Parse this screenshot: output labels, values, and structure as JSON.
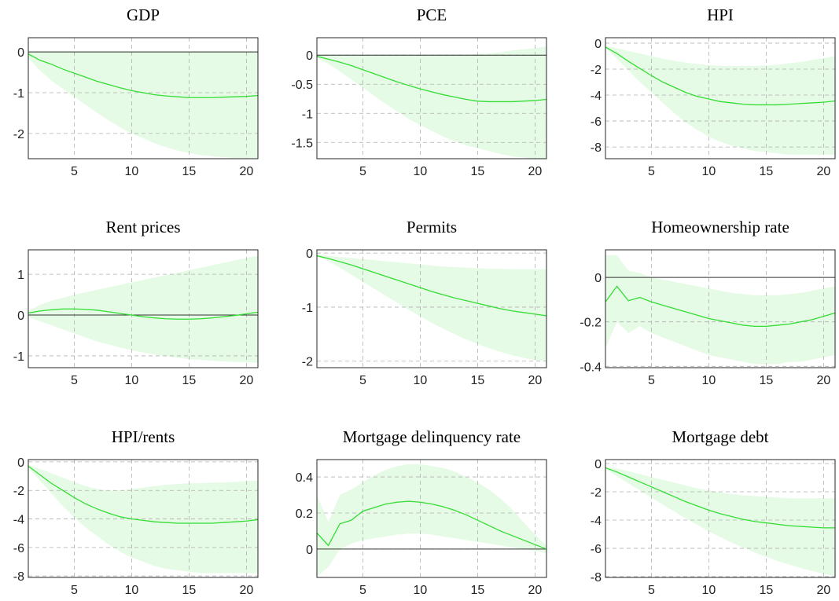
{
  "chart_data": [
    {
      "type": "line",
      "title": "GDP",
      "x": [
        1,
        2,
        3,
        4,
        5,
        6,
        7,
        8,
        9,
        10,
        11,
        12,
        13,
        14,
        15,
        16,
        17,
        18,
        19,
        20,
        21
      ],
      "xlim": [
        1,
        21
      ],
      "xticks": [
        5,
        10,
        15,
        20
      ],
      "ylim": [
        -2.62,
        0.35
      ],
      "yticks": [
        -2,
        -1,
        0
      ],
      "hline": 0,
      "grid": true,
      "color": "#33dd33",
      "band_color": "#e6fbe6",
      "values": [
        -0.05,
        -0.2,
        -0.3,
        -0.42,
        -0.52,
        -0.62,
        -0.72,
        -0.8,
        -0.88,
        -0.95,
        -1.0,
        -1.05,
        -1.08,
        -1.1,
        -1.12,
        -1.12,
        -1.12,
        -1.11,
        -1.1,
        -1.09,
        -1.07
      ],
      "lower": [
        -0.15,
        -0.45,
        -0.7,
        -0.9,
        -1.1,
        -1.3,
        -1.5,
        -1.68,
        -1.85,
        -2.0,
        -2.12,
        -2.24,
        -2.34,
        -2.42,
        -2.48,
        -2.53,
        -2.56,
        -2.58,
        -2.6,
        -2.6,
        -2.6
      ],
      "upper": [
        0.02,
        0.02,
        0.02,
        0.02,
        0.02,
        0.02,
        0.02,
        0.02,
        0.02,
        0.02,
        0.02,
        0.02,
        0.02,
        0.02,
        0.02,
        0.02,
        0.02,
        0.02,
        0.02,
        0.02,
        0.02
      ]
    },
    {
      "type": "line",
      "title": "PCE",
      "x": [
        1,
        2,
        3,
        4,
        5,
        6,
        7,
        8,
        9,
        10,
        11,
        12,
        13,
        14,
        15,
        16,
        17,
        18,
        19,
        20,
        21
      ],
      "xlim": [
        1,
        21
      ],
      "xticks": [
        5,
        10,
        15,
        20
      ],
      "ylim": [
        -1.78,
        0.3
      ],
      "yticks": [
        -1.5,
        -1,
        -0.5,
        0
      ],
      "hline": 0,
      "grid": true,
      "color": "#33dd33",
      "band_color": "#e6fbe6",
      "values": [
        -0.02,
        -0.07,
        -0.12,
        -0.18,
        -0.25,
        -0.32,
        -0.39,
        -0.46,
        -0.52,
        -0.58,
        -0.63,
        -0.68,
        -0.72,
        -0.76,
        -0.79,
        -0.8,
        -0.8,
        -0.8,
        -0.79,
        -0.78,
        -0.76
      ],
      "lower": [
        -0.05,
        -0.15,
        -0.28,
        -0.42,
        -0.56,
        -0.7,
        -0.84,
        -0.97,
        -1.1,
        -1.2,
        -1.3,
        -1.4,
        -1.48,
        -1.55,
        -1.6,
        -1.65,
        -1.7,
        -1.74,
        -1.76,
        -1.78,
        -1.78
      ],
      "upper": [
        0.01,
        0.01,
        0.01,
        0.01,
        0.01,
        0.01,
        0.01,
        0.01,
        0.01,
        0.01,
        0.01,
        0.01,
        0.01,
        0.01,
        0.02,
        0.03,
        0.05,
        0.08,
        0.1,
        0.12,
        0.15
      ]
    },
    {
      "type": "line",
      "title": "HPI",
      "x": [
        1,
        2,
        3,
        4,
        5,
        6,
        7,
        8,
        9,
        10,
        11,
        12,
        13,
        14,
        15,
        16,
        17,
        18,
        19,
        20,
        21
      ],
      "xlim": [
        1,
        21
      ],
      "xticks": [
        5,
        10,
        15,
        20
      ],
      "ylim": [
        -8.9,
        0.42
      ],
      "yticks": [
        -8,
        -6,
        -4,
        -2,
        0
      ],
      "grid": true,
      "color": "#33dd33",
      "band_color": "#e6fbe6",
      "values": [
        -0.3,
        -0.8,
        -1.4,
        -1.95,
        -2.5,
        -3.0,
        -3.4,
        -3.8,
        -4.1,
        -4.3,
        -4.5,
        -4.6,
        -4.7,
        -4.75,
        -4.75,
        -4.75,
        -4.7,
        -4.65,
        -4.6,
        -4.55,
        -4.45
      ],
      "lower": [
        -0.4,
        -1.2,
        -2.1,
        -3,
        -3.8,
        -4.6,
        -5.4,
        -6.1,
        -6.7,
        -7.2,
        -7.6,
        -7.9,
        -8.1,
        -8.3,
        -8.4,
        -8.5,
        -8.6,
        -8.6,
        -8.6,
        -8.6,
        -8.6
      ],
      "upper": [
        -0.2,
        -0.4,
        -0.6,
        -0.8,
        -1.0,
        -1.2,
        -1.35,
        -1.5,
        -1.6,
        -1.7,
        -1.75,
        -1.75,
        -1.75,
        -1.75,
        -1.72,
        -1.65,
        -1.55,
        -1.45,
        -1.3,
        -1.15,
        -1.0
      ]
    },
    {
      "type": "line",
      "title": "Rent prices",
      "x": [
        1,
        2,
        3,
        4,
        5,
        6,
        7,
        8,
        9,
        10,
        11,
        12,
        13,
        14,
        15,
        16,
        17,
        18,
        19,
        20,
        21
      ],
      "xlim": [
        1,
        21
      ],
      "xticks": [
        5,
        10,
        15,
        20
      ],
      "ylim": [
        -1.29,
        1.6
      ],
      "yticks": [
        -1,
        0,
        1
      ],
      "hline": 0,
      "grid": true,
      "color": "#33dd33",
      "band_color": "#e6fbe6",
      "values": [
        0.05,
        0.1,
        0.13,
        0.15,
        0.15,
        0.14,
        0.12,
        0.08,
        0.04,
        0,
        -0.04,
        -0.07,
        -0.09,
        -0.1,
        -0.1,
        -0.09,
        -0.07,
        -0.04,
        -0.01,
        0.03,
        0.07
      ],
      "lower": [
        -0.05,
        -0.15,
        -0.25,
        -0.35,
        -0.45,
        -0.55,
        -0.65,
        -0.72,
        -0.8,
        -0.86,
        -0.92,
        -0.97,
        -1.01,
        -1.05,
        -1.08,
        -1.1,
        -1.12,
        -1.14,
        -1.15,
        -1.16,
        -1.17
      ],
      "upper": [
        0.1,
        0.25,
        0.35,
        0.42,
        0.5,
        0.56,
        0.62,
        0.68,
        0.74,
        0.8,
        0.86,
        0.92,
        0.98,
        1.04,
        1.1,
        1.16,
        1.22,
        1.28,
        1.34,
        1.4,
        1.45
      ]
    },
    {
      "type": "line",
      "title": "Permits",
      "x": [
        1,
        2,
        3,
        4,
        5,
        6,
        7,
        8,
        9,
        10,
        11,
        12,
        13,
        14,
        15,
        16,
        17,
        18,
        19,
        20,
        21
      ],
      "xlim": [
        1,
        21
      ],
      "xticks": [
        5,
        10,
        15,
        20
      ],
      "ylim": [
        -2.12,
        0.06
      ],
      "yticks": [
        -2,
        -1,
        0
      ],
      "grid": true,
      "color": "#33dd33",
      "band_color": "#e6fbe6",
      "values": [
        -0.05,
        -0.1,
        -0.16,
        -0.22,
        -0.29,
        -0.36,
        -0.43,
        -0.5,
        -0.57,
        -0.64,
        -0.71,
        -0.77,
        -0.83,
        -0.88,
        -0.93,
        -0.98,
        -1.03,
        -1.07,
        -1.1,
        -1.13,
        -1.16
      ],
      "lower": [
        -0.05,
        -0.15,
        -0.27,
        -0.4,
        -0.53,
        -0.66,
        -0.79,
        -0.92,
        -1.05,
        -1.17,
        -1.29,
        -1.4,
        -1.5,
        -1.6,
        -1.68,
        -1.76,
        -1.83,
        -1.89,
        -1.94,
        -1.98,
        -2.0
      ],
      "upper": [
        -0.03,
        -0.05,
        -0.07,
        -0.09,
        -0.11,
        -0.13,
        -0.15,
        -0.17,
        -0.19,
        -0.21,
        -0.23,
        -0.25,
        -0.26,
        -0.27,
        -0.28,
        -0.29,
        -0.29,
        -0.3,
        -0.3,
        -0.3,
        -0.3
      ]
    },
    {
      "type": "line",
      "title": "Homeownership rate",
      "x": [
        1,
        2,
        3,
        4,
        5,
        6,
        7,
        8,
        9,
        10,
        11,
        12,
        13,
        14,
        15,
        16,
        17,
        18,
        19,
        20,
        21
      ],
      "xlim": [
        1,
        21
      ],
      "xticks": [
        5,
        10,
        15,
        20
      ],
      "ylim": [
        -0.406,
        0.124
      ],
      "yticks": [
        -0.4,
        -0.2,
        0
      ],
      "hline": 0,
      "grid": true,
      "color": "#33dd33",
      "band_color": "#e6fbe6",
      "values": [
        -0.11,
        -0.04,
        -0.105,
        -0.09,
        -0.11,
        -0.125,
        -0.14,
        -0.155,
        -0.17,
        -0.185,
        -0.195,
        -0.205,
        -0.215,
        -0.22,
        -0.22,
        -0.215,
        -0.21,
        -0.2,
        -0.19,
        -0.175,
        -0.16
      ],
      "lower": [
        -0.32,
        -0.2,
        -0.25,
        -0.22,
        -0.25,
        -0.27,
        -0.29,
        -0.31,
        -0.33,
        -0.35,
        -0.36,
        -0.37,
        -0.38,
        -0.39,
        -0.39,
        -0.39,
        -0.38,
        -0.38,
        -0.37,
        -0.36,
        -0.35
      ],
      "upper": [
        0.1,
        0.1,
        0.03,
        0.02,
        0.0,
        -0.01,
        -0.02,
        -0.03,
        -0.04,
        -0.05,
        -0.06,
        -0.07,
        -0.075,
        -0.08,
        -0.08,
        -0.08,
        -0.075,
        -0.07,
        -0.06,
        -0.05,
        -0.04
      ]
    },
    {
      "type": "line",
      "title": "HPI/rents",
      "x": [
        1,
        2,
        3,
        4,
        5,
        6,
        7,
        8,
        9,
        10,
        11,
        12,
        13,
        14,
        15,
        16,
        17,
        18,
        19,
        20,
        21
      ],
      "xlim": [
        1,
        21
      ],
      "xticks": [
        5,
        10,
        15,
        20
      ],
      "ylim": [
        -8.1,
        0.16
      ],
      "yticks": [
        -8,
        -6,
        -4,
        -2,
        0
      ],
      "grid": true,
      "color": "#33dd33",
      "band_color": "#e6fbe6",
      "values": [
        -0.3,
        -0.9,
        -1.5,
        -2.0,
        -2.5,
        -2.95,
        -3.3,
        -3.6,
        -3.85,
        -4.0,
        -4.1,
        -4.2,
        -4.25,
        -4.3,
        -4.3,
        -4.3,
        -4.3,
        -4.25,
        -4.2,
        -4.15,
        -4.05
      ],
      "lower": [
        -0.4,
        -1.3,
        -2.2,
        -3.1,
        -3.9,
        -4.6,
        -5.2,
        -5.8,
        -6.3,
        -6.7,
        -7.0,
        -7.3,
        -7.5,
        -7.6,
        -7.7,
        -7.8,
        -7.8,
        -7.8,
        -7.8,
        -7.8,
        -7.8
      ],
      "upper": [
        -0.2,
        -0.5,
        -0.8,
        -1.1,
        -1.4,
        -1.7,
        -1.9,
        -2.0,
        -2.0,
        -1.9,
        -1.8,
        -1.7,
        -1.6,
        -1.55,
        -1.5,
        -1.5,
        -1.45,
        -1.45,
        -1.4,
        -1.35,
        -1.3
      ]
    },
    {
      "type": "line",
      "title": "Mortgage delinquency rate",
      "x": [
        1,
        2,
        3,
        4,
        5,
        6,
        7,
        8,
        9,
        10,
        11,
        12,
        13,
        14,
        15,
        16,
        17,
        18,
        19,
        20,
        21
      ],
      "xlim": [
        1,
        21
      ],
      "xticks": [
        5,
        10,
        15,
        20
      ],
      "ylim": [
        -0.157,
        0.496
      ],
      "yticks": [
        0,
        0.2,
        0.4
      ],
      "hline": 0,
      "grid": true,
      "color": "#33dd33",
      "band_color": "#e6fbe6",
      "values": [
        0.09,
        0.02,
        0.14,
        0.16,
        0.21,
        0.23,
        0.25,
        0.26,
        0.265,
        0.26,
        0.25,
        0.235,
        0.215,
        0.19,
        0.16,
        0.13,
        0.1,
        0.075,
        0.05,
        0.025,
        0.0
      ],
      "lower": [
        -0.15,
        -0.1,
        0.0,
        0.03,
        0.05,
        0.06,
        0.07,
        0.08,
        0.085,
        0.085,
        0.08,
        0.07,
        0.06,
        0.05,
        0.04,
        0.03,
        0.02,
        0.01,
        0.0,
        -0.01,
        -0.02
      ],
      "upper": [
        0.3,
        0.15,
        0.3,
        0.33,
        0.37,
        0.41,
        0.44,
        0.46,
        0.47,
        0.47,
        0.46,
        0.45,
        0.43,
        0.4,
        0.37,
        0.33,
        0.28,
        0.22,
        0.15,
        0.08,
        0.02
      ]
    },
    {
      "type": "line",
      "title": "Mortgage debt",
      "x": [
        1,
        2,
        3,
        4,
        5,
        6,
        7,
        8,
        9,
        10,
        11,
        12,
        13,
        14,
        15,
        16,
        17,
        18,
        19,
        20,
        21
      ],
      "xlim": [
        1,
        21
      ],
      "xticks": [
        5,
        10,
        15,
        20
      ],
      "ylim": [
        -8.06,
        0.28
      ],
      "yticks": [
        -8,
        -6,
        -4,
        -2,
        0
      ],
      "grid": true,
      "color": "#33dd33",
      "band_color": "#e6fbe6",
      "values": [
        -0.3,
        -0.6,
        -0.95,
        -1.3,
        -1.65,
        -2.0,
        -2.35,
        -2.7,
        -3.0,
        -3.3,
        -3.55,
        -3.75,
        -3.95,
        -4.1,
        -4.2,
        -4.3,
        -4.4,
        -4.45,
        -4.5,
        -4.55,
        -4.55
      ],
      "lower": [
        -0.4,
        -0.9,
        -1.4,
        -1.9,
        -2.4,
        -2.9,
        -3.4,
        -3.9,
        -4.35,
        -4.8,
        -5.2,
        -5.6,
        -5.95,
        -6.3,
        -6.6,
        -6.9,
        -7.15,
        -7.4,
        -7.6,
        -7.8,
        -7.95
      ],
      "upper": [
        -0.2,
        -0.35,
        -0.55,
        -0.75,
        -0.95,
        -1.15,
        -1.35,
        -1.55,
        -1.75,
        -1.9,
        -2.05,
        -2.15,
        -2.25,
        -2.3,
        -2.35,
        -2.4,
        -2.45,
        -2.45,
        -2.45,
        -2.45,
        -2.45
      ]
    }
  ]
}
